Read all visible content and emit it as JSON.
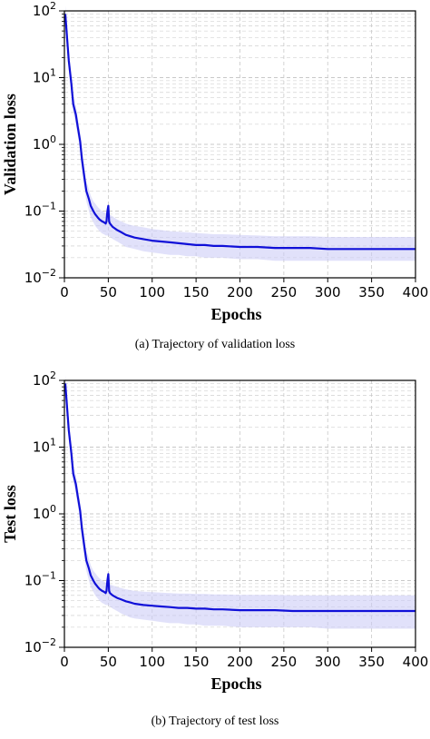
{
  "colors": {
    "line": "#1010d8",
    "band": "#c8c8f5",
    "grid": "#c8c8c8"
  },
  "chart_data": [
    {
      "type": "line",
      "ylabel": "Validation loss",
      "xlabel": "Epochs",
      "caption": "(a)  Trajectory of validation loss",
      "yscale": "log",
      "xlim": [
        0,
        400
      ],
      "ylim": [
        0.01,
        100
      ],
      "xticks": [
        0,
        50,
        100,
        150,
        200,
        250,
        300,
        350,
        400
      ],
      "yticks": [
        {
          "base": "10",
          "exp": "2",
          "value": 100
        },
        {
          "base": "10",
          "exp": "1",
          "value": 10
        },
        {
          "base": "10",
          "exp": "0",
          "value": 1
        },
        {
          "base": "10",
          "exp": "−1",
          "value": 0.1
        },
        {
          "base": "10",
          "exp": "−2",
          "value": 0.01
        }
      ],
      "grid": true,
      "series": [
        {
          "x": [
            1,
            3,
            5,
            8,
            10,
            13,
            15,
            18,
            20,
            23,
            25,
            28,
            30,
            33,
            35,
            38,
            40,
            43,
            45,
            47,
            48,
            49,
            50,
            51,
            52,
            55,
            60,
            65,
            70,
            75,
            80,
            90,
            100,
            110,
            120,
            130,
            140,
            150,
            160,
            170,
            180,
            200,
            220,
            240,
            260,
            280,
            300,
            320,
            340,
            360,
            380,
            400
          ],
          "y": [
            90,
            40,
            18,
            8,
            4,
            2.8,
            1.9,
            1.1,
            0.6,
            0.3,
            0.2,
            0.15,
            0.12,
            0.1,
            0.09,
            0.08,
            0.075,
            0.07,
            0.068,
            0.065,
            0.07,
            0.1,
            0.12,
            0.07,
            0.065,
            0.058,
            0.052,
            0.048,
            0.044,
            0.042,
            0.04,
            0.038,
            0.036,
            0.035,
            0.034,
            0.033,
            0.032,
            0.031,
            0.031,
            0.03,
            0.03,
            0.029,
            0.029,
            0.028,
            0.028,
            0.028,
            0.027,
            0.027,
            0.027,
            0.027,
            0.027,
            0.027
          ],
          "band_upper": [
            120,
            55,
            25,
            11,
            5.5,
            3.8,
            2.6,
            1.5,
            0.85,
            0.42,
            0.28,
            0.21,
            0.17,
            0.14,
            0.13,
            0.115,
            0.108,
            0.1,
            0.097,
            0.093,
            0.093,
            0.093,
            0.092,
            0.09,
            0.088,
            0.083,
            0.075,
            0.07,
            0.065,
            0.062,
            0.06,
            0.057,
            0.054,
            0.052,
            0.05,
            0.049,
            0.048,
            0.047,
            0.046,
            0.045,
            0.045,
            0.044,
            0.043,
            0.042,
            0.042,
            0.042,
            0.041,
            0.041,
            0.041,
            0.041,
            0.041,
            0.041
          ],
          "band_lower": [
            70,
            30,
            13,
            6,
            3,
            2,
            1.4,
            0.8,
            0.43,
            0.21,
            0.14,
            0.1,
            0.08,
            0.068,
            0.06,
            0.054,
            0.05,
            0.046,
            0.045,
            0.043,
            0.043,
            0.043,
            0.043,
            0.042,
            0.041,
            0.038,
            0.035,
            0.032,
            0.029,
            0.028,
            0.027,
            0.025,
            0.024,
            0.023,
            0.022,
            0.022,
            0.021,
            0.021,
            0.02,
            0.02,
            0.02,
            0.019,
            0.019,
            0.018,
            0.018,
            0.018,
            0.018,
            0.018,
            0.018,
            0.018,
            0.018,
            0.018
          ]
        }
      ]
    },
    {
      "type": "line",
      "ylabel": "Test loss",
      "xlabel": "Epochs",
      "caption": "(b)  Trajectory of test loss",
      "yscale": "log",
      "xlim": [
        0,
        400
      ],
      "ylim": [
        0.01,
        100
      ],
      "xticks": [
        0,
        50,
        100,
        150,
        200,
        250,
        300,
        350,
        400
      ],
      "yticks": [
        {
          "base": "10",
          "exp": "2",
          "value": 100
        },
        {
          "base": "10",
          "exp": "1",
          "value": 10
        },
        {
          "base": "10",
          "exp": "0",
          "value": 1
        },
        {
          "base": "10",
          "exp": "−1",
          "value": 0.1
        },
        {
          "base": "10",
          "exp": "−2",
          "value": 0.01
        }
      ],
      "grid": true,
      "series": [
        {
          "x": [
            1,
            3,
            5,
            8,
            10,
            13,
            15,
            18,
            20,
            23,
            25,
            28,
            30,
            33,
            35,
            38,
            40,
            43,
            45,
            47,
            48,
            49,
            50,
            51,
            52,
            55,
            60,
            65,
            70,
            75,
            80,
            90,
            100,
            110,
            120,
            130,
            140,
            150,
            160,
            170,
            180,
            200,
            220,
            240,
            260,
            280,
            300,
            320,
            340,
            360,
            380,
            400
          ],
          "y": [
            90,
            40,
            18,
            8,
            4,
            2.8,
            1.9,
            1.1,
            0.6,
            0.3,
            0.2,
            0.15,
            0.12,
            0.1,
            0.09,
            0.08,
            0.075,
            0.07,
            0.068,
            0.065,
            0.07,
            0.1,
            0.125,
            0.07,
            0.065,
            0.06,
            0.055,
            0.052,
            0.049,
            0.047,
            0.045,
            0.043,
            0.042,
            0.041,
            0.04,
            0.039,
            0.039,
            0.038,
            0.038,
            0.037,
            0.037,
            0.036,
            0.036,
            0.036,
            0.035,
            0.035,
            0.035,
            0.035,
            0.035,
            0.035,
            0.035,
            0.035
          ],
          "band_upper": [
            120,
            55,
            25,
            11,
            5.5,
            3.8,
            2.6,
            1.5,
            0.85,
            0.42,
            0.28,
            0.21,
            0.17,
            0.14,
            0.13,
            0.115,
            0.108,
            0.1,
            0.097,
            0.093,
            0.093,
            0.093,
            0.092,
            0.09,
            0.088,
            0.085,
            0.08,
            0.077,
            0.074,
            0.072,
            0.07,
            0.068,
            0.067,
            0.066,
            0.065,
            0.064,
            0.064,
            0.063,
            0.063,
            0.062,
            0.062,
            0.061,
            0.061,
            0.061,
            0.06,
            0.06,
            0.06,
            0.06,
            0.06,
            0.06,
            0.06,
            0.06
          ],
          "band_lower": [
            70,
            30,
            13,
            6,
            3,
            2,
            1.4,
            0.8,
            0.43,
            0.21,
            0.14,
            0.1,
            0.08,
            0.068,
            0.06,
            0.054,
            0.05,
            0.046,
            0.045,
            0.043,
            0.043,
            0.043,
            0.043,
            0.042,
            0.041,
            0.038,
            0.035,
            0.032,
            0.03,
            0.028,
            0.027,
            0.026,
            0.025,
            0.024,
            0.023,
            0.023,
            0.022,
            0.022,
            0.021,
            0.021,
            0.021,
            0.02,
            0.02,
            0.02,
            0.02,
            0.02,
            0.019,
            0.019,
            0.019,
            0.019,
            0.019,
            0.019
          ]
        }
      ]
    }
  ]
}
